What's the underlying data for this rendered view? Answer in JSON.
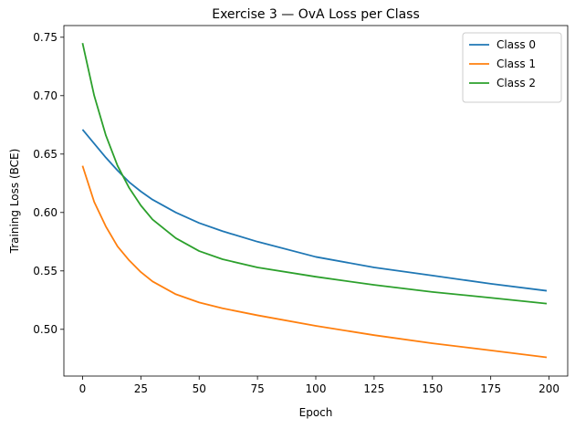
{
  "chart_data": {
    "type": "line",
    "title": "Exercise 3 — OvA Loss per Class",
    "xlabel": "Epoch",
    "ylabel": "Training Loss (BCE)",
    "xlim": [
      -8,
      208
    ],
    "ylim": [
      0.46,
      0.76
    ],
    "xticks": [
      0,
      25,
      50,
      75,
      100,
      125,
      150,
      175,
      200
    ],
    "yticks": [
      0.5,
      0.55,
      0.6,
      0.65,
      0.7,
      0.75
    ],
    "xtick_labels": [
      "0",
      "25",
      "50",
      "75",
      "100",
      "125",
      "150",
      "175",
      "200"
    ],
    "ytick_labels": [
      "0.50",
      "0.55",
      "0.60",
      "0.65",
      "0.70",
      "0.75"
    ],
    "grid": false,
    "legend_position": "top-right",
    "x": [
      0,
      5,
      10,
      15,
      20,
      25,
      30,
      40,
      50,
      60,
      75,
      100,
      125,
      150,
      175,
      199
    ],
    "series": [
      {
        "name": "Class 0",
        "color": "#1f77b4",
        "values": [
          0.671,
          0.659,
          0.647,
          0.636,
          0.626,
          0.618,
          0.611,
          0.6,
          0.591,
          0.584,
          0.575,
          0.562,
          0.553,
          0.546,
          0.539,
          0.533
        ]
      },
      {
        "name": "Class 1",
        "color": "#ff7f0e",
        "values": [
          0.64,
          0.609,
          0.588,
          0.571,
          0.559,
          0.549,
          0.541,
          0.53,
          0.523,
          0.518,
          0.512,
          0.503,
          0.495,
          0.488,
          0.482,
          0.476
        ]
      },
      {
        "name": "Class 2",
        "color": "#2ca02c",
        "values": [
          0.745,
          0.7,
          0.666,
          0.64,
          0.621,
          0.606,
          0.594,
          0.578,
          0.567,
          0.56,
          0.553,
          0.545,
          0.538,
          0.532,
          0.527,
          0.522
        ]
      }
    ]
  }
}
